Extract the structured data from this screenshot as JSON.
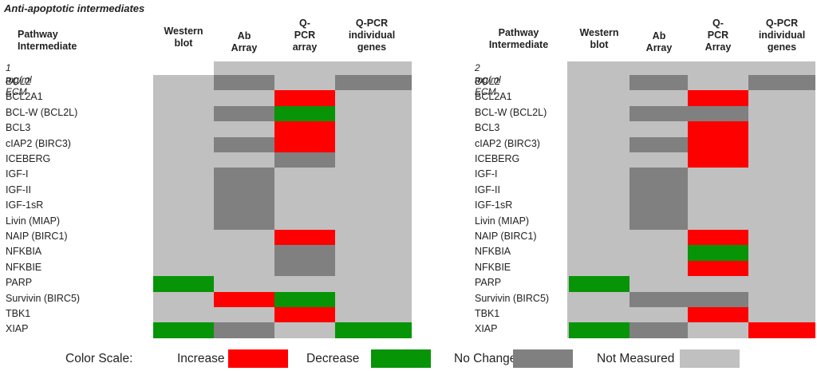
{
  "title": "Anti-apoptotic intermediates",
  "colors": {
    "increase": "#ff0000",
    "decrease": "#079407",
    "no_change": "#808080",
    "not_measured": "#c0c0c0"
  },
  "chart_data": [
    {
      "type": "heatmap",
      "condition": "1 mg/ml ECM",
      "columns": [
        "Pathway Intermediate",
        "Western\nblot",
        "Ab Array",
        "Q-PCR\narray",
        "Q-PCR\nindividual\ngenes"
      ],
      "rows": [
        {
          "label": "BCL2",
          "values": [
            "not_measured",
            "no_change",
            "not_measured",
            "no_change"
          ]
        },
        {
          "label": "BCL2A1",
          "values": [
            "not_measured",
            "not_measured",
            "increase",
            "not_measured"
          ]
        },
        {
          "label": "BCL-W (BCL2L)",
          "values": [
            "not_measured",
            "no_change",
            "decrease",
            "not_measured"
          ]
        },
        {
          "label": "BCL3",
          "values": [
            "not_measured",
            "not_measured",
            "increase",
            "not_measured"
          ]
        },
        {
          "label": "cIAP2 (BIRC3)",
          "values": [
            "not_measured",
            "no_change",
            "increase",
            "not_measured"
          ]
        },
        {
          "label": "ICEBERG",
          "values": [
            "not_measured",
            "not_measured",
            "no_change",
            "not_measured"
          ]
        },
        {
          "label": "IGF-I",
          "values": [
            "not_measured",
            "no_change",
            "not_measured",
            "not_measured"
          ]
        },
        {
          "label": "IGF-II",
          "values": [
            "not_measured",
            "no_change",
            "not_measured",
            "not_measured"
          ]
        },
        {
          "label": "IGF-1sR",
          "values": [
            "not_measured",
            "no_change",
            "not_measured",
            "not_measured"
          ]
        },
        {
          "label": "Livin (MIAP)",
          "values": [
            "not_measured",
            "no_change",
            "not_measured",
            "not_measured"
          ]
        },
        {
          "label": "NAIP (BIRC1)",
          "values": [
            "not_measured",
            "not_measured",
            "increase",
            "not_measured"
          ]
        },
        {
          "label": "NFKBIA",
          "values": [
            "not_measured",
            "not_measured",
            "no_change",
            "not_measured"
          ]
        },
        {
          "label": "NFKBIE",
          "values": [
            "not_measured",
            "not_measured",
            "no_change",
            "not_measured"
          ]
        },
        {
          "label": "PARP",
          "values": [
            "decrease",
            "not_measured",
            "not_measured",
            "not_measured"
          ]
        },
        {
          "label": "Survivin (BIRC5)",
          "values": [
            "not_measured",
            "increase",
            "decrease",
            "not_measured"
          ]
        },
        {
          "label": "TBK1",
          "values": [
            "not_measured",
            "not_measured",
            "increase",
            "not_measured"
          ]
        },
        {
          "label": "XIAP",
          "values": [
            "decrease",
            "no_change",
            "not_measured",
            "decrease"
          ]
        }
      ]
    },
    {
      "type": "heatmap",
      "condition": "2 mg/ml ECM",
      "columns": [
        "Pathway\nIntermediate",
        "Western\nblot",
        "Ab Array",
        "Q-PCR\nArray",
        "Q-PCR\nindividual\ngenes"
      ],
      "rows": [
        {
          "label": "BCL2",
          "values": [
            "not_measured",
            "no_change",
            "not_measured",
            "no_change"
          ]
        },
        {
          "label": "BCL2A1",
          "values": [
            "not_measured",
            "not_measured",
            "increase",
            "not_measured"
          ]
        },
        {
          "label": "BCL-W (BCL2L)",
          "values": [
            "not_measured",
            "no_change",
            "no_change",
            "not_measured"
          ]
        },
        {
          "label": "BCL3",
          "values": [
            "not_measured",
            "not_measured",
            "increase",
            "not_measured"
          ]
        },
        {
          "label": "cIAP2 (BIRC3)",
          "values": [
            "not_measured",
            "no_change",
            "increase",
            "not_measured"
          ]
        },
        {
          "label": "ICEBERG",
          "values": [
            "not_measured",
            "not_measured",
            "increase",
            "not_measured"
          ]
        },
        {
          "label": "IGF-I",
          "values": [
            "not_measured",
            "no_change",
            "not_measured",
            "not_measured"
          ]
        },
        {
          "label": "IGF-II",
          "values": [
            "not_measured",
            "no_change",
            "not_measured",
            "not_measured"
          ]
        },
        {
          "label": "IGF-1sR",
          "values": [
            "not_measured",
            "no_change",
            "not_measured",
            "not_measured"
          ]
        },
        {
          "label": "Livin (MIAP)",
          "values": [
            "not_measured",
            "no_change",
            "not_measured",
            "not_measured"
          ]
        },
        {
          "label": "NAIP (BIRC1)",
          "values": [
            "not_measured",
            "not_measured",
            "increase",
            "not_measured"
          ]
        },
        {
          "label": "NFKBIA",
          "values": [
            "not_measured",
            "not_measured",
            "decrease",
            "not_measured"
          ]
        },
        {
          "label": "NFKBIE",
          "values": [
            "not_measured",
            "not_measured",
            "increase",
            "not_measured"
          ]
        },
        {
          "label": "PARP",
          "values": [
            "decrease",
            "not_measured",
            "not_measured",
            "not_measured"
          ]
        },
        {
          "label": "Survivin (BIRC5)",
          "values": [
            "not_measured",
            "no_change",
            "no_change",
            "not_measured"
          ]
        },
        {
          "label": "TBK1",
          "values": [
            "not_measured",
            "not_measured",
            "increase",
            "not_measured"
          ]
        },
        {
          "label": "XIAP",
          "values": [
            "decrease",
            "no_change",
            "not_measured",
            "increase"
          ]
        }
      ]
    }
  ],
  "legend": {
    "title": "Color Scale:",
    "items": [
      {
        "label": "Increase",
        "key": "increase"
      },
      {
        "label": "Decrease",
        "key": "decrease"
      },
      {
        "label": "No Change",
        "key": "no_change"
      },
      {
        "label": "Not Measured",
        "key": "not_measured"
      }
    ]
  }
}
